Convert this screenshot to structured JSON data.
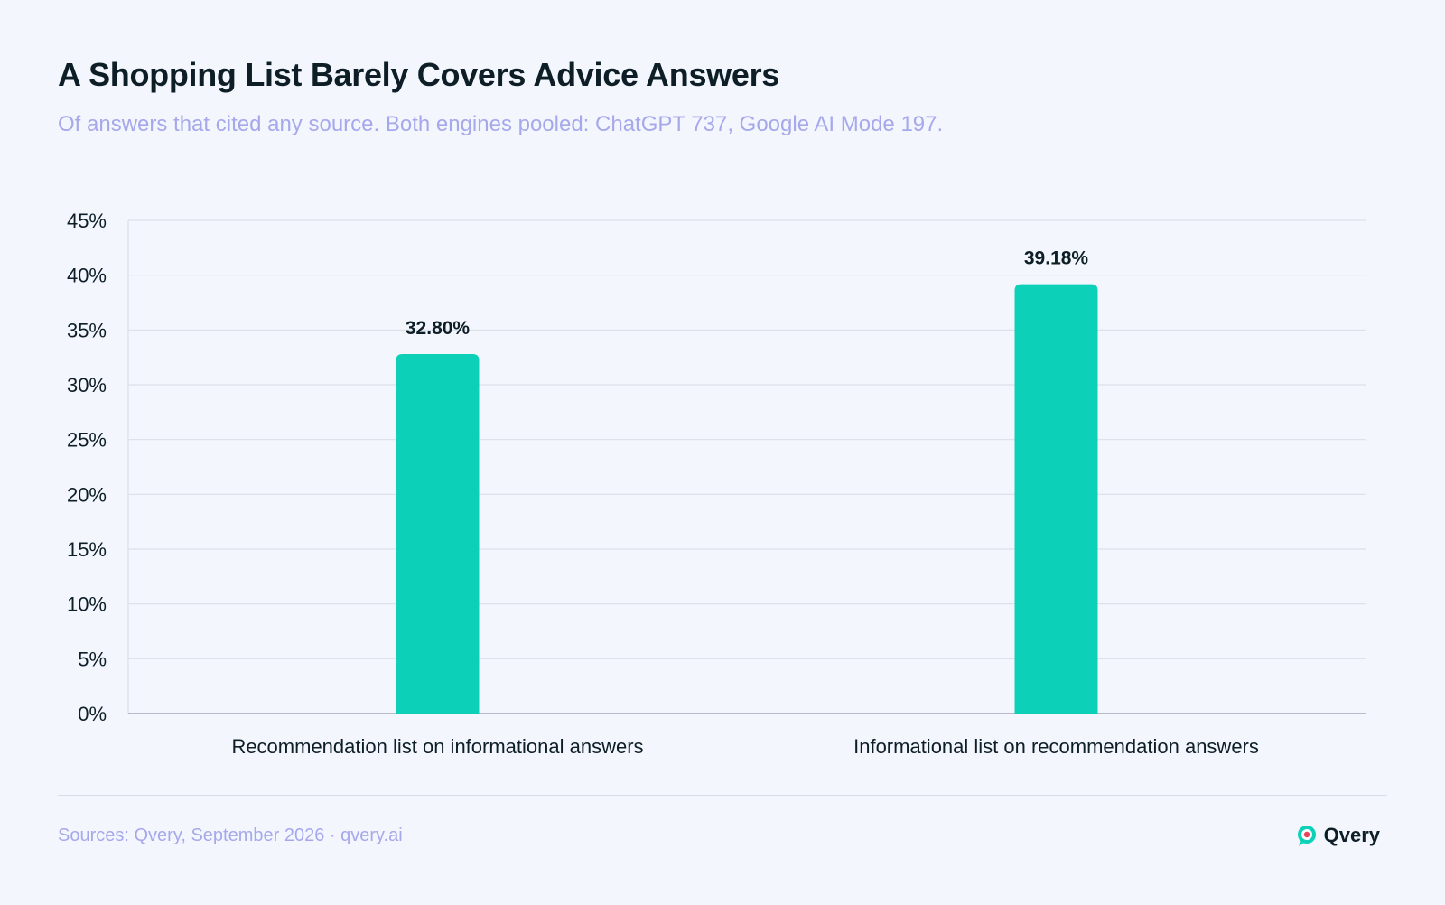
{
  "header": {
    "title": "A Shopping List Barely Covers Advice Answers",
    "subtitle": "Of answers that cited any source. Both engines pooled: ChatGPT 737, Google AI Mode 197."
  },
  "chart_data": {
    "type": "bar",
    "categories": [
      "Recommendation list on informational answers",
      "Informational list on recommendation answers"
    ],
    "values": [
      32.8,
      39.18
    ],
    "value_labels": [
      "32.80%",
      "39.18%"
    ],
    "ylim": [
      0,
      45
    ],
    "yticks": [
      0,
      5,
      10,
      15,
      20,
      25,
      30,
      35,
      40,
      45
    ],
    "ytick_labels": [
      "0%",
      "5%",
      "10%",
      "15%",
      "20%",
      "25%",
      "30%",
      "35%",
      "40%",
      "45%"
    ],
    "grid": true,
    "xlabel": "",
    "ylabel": "",
    "colors": {
      "bar": "#0dd0b9",
      "grid": "#dbdfe8",
      "axis": "#b7bcc8",
      "tick_text": "#0e1e26",
      "value_text": "#0e1e26"
    }
  },
  "footer": {
    "source": "Sources: Qvery, September 2026 · qvery.ai",
    "brand_name": "Qvery",
    "brand_icon": "qvery-logo-icon"
  }
}
